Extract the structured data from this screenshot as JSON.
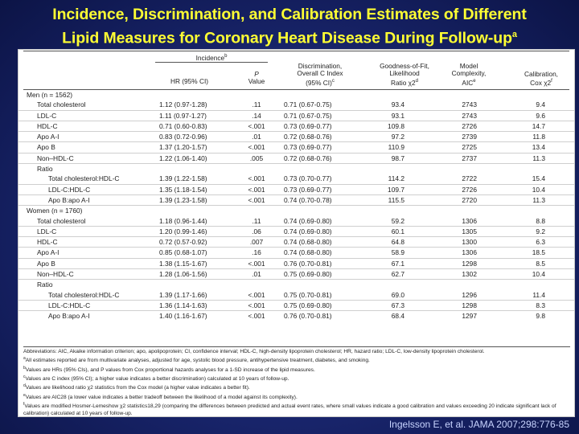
{
  "title": {
    "line1": "Incidence, Discrimination, and Calibration Estimates of Different",
    "line2": "Lipid Measures for Coronary Heart Disease During Follow-up",
    "line2_sup": "a"
  },
  "table": {
    "header": {
      "group_incidence": "Incidence",
      "group_incidence_sup": "b",
      "hr_label": "HR (95% CI)",
      "p_line1": "P",
      "p_line2": "Value",
      "disc_line1": "Discrimination,",
      "disc_line2": "Overall C Index",
      "disc_line3": "(95% CI)",
      "disc_sup": "c",
      "gof_line1": "Goodness-of-Fit,",
      "gof_line2": "Likelihood",
      "gof_line3": "Ratio χ2",
      "gof_sup": "d",
      "mc_line1": "Model",
      "mc_line2": "Complexity,",
      "mc_line3": "AIC",
      "mc_sup": "e",
      "cal_line1": "Calibration,",
      "cal_line2": "Cox χ2",
      "cal_sup": "f"
    },
    "rows": [
      {
        "label": "Men (n = 1562)",
        "level": 0,
        "hr": "",
        "p": "",
        "c": "",
        "lr": "",
        "aic": "",
        "cal": "",
        "rule": false
      },
      {
        "label": "Total cholesterol",
        "level": 1,
        "hr": "1.12 (0.97-1.28)",
        "p": ".11",
        "c": "0.71 (0.67-0.75)",
        "lr": "93.4",
        "aic": "2743",
        "cal": "9.4",
        "rule": true
      },
      {
        "label": "LDL-C",
        "level": 1,
        "hr": "1.11 (0.97-1.27)",
        "p": ".14",
        "c": "0.71 (0.67-0.75)",
        "lr": "93.1",
        "aic": "2743",
        "cal": "9.6",
        "rule": true
      },
      {
        "label": "HDL-C",
        "level": 1,
        "hr": "0.71 (0.60-0.83)",
        "p": "<.001",
        "c": "0.73 (0.69-0.77)",
        "lr": "109.8",
        "aic": "2726",
        "cal": "14.7",
        "rule": true
      },
      {
        "label": "Apo A-I",
        "level": 1,
        "hr": "0.83 (0.72-0.96)",
        "p": ".01",
        "c": "0.72 (0.68-0.76)",
        "lr": "97.2",
        "aic": "2739",
        "cal": "11.8",
        "rule": true
      },
      {
        "label": "Apo B",
        "level": 1,
        "hr": "1.37 (1.20-1.57)",
        "p": "<.001",
        "c": "0.73 (0.69-0.77)",
        "lr": "110.9",
        "aic": "2725",
        "cal": "13.4",
        "rule": true
      },
      {
        "label": "Non–HDL-C",
        "level": 1,
        "hr": "1.22 (1.06-1.40)",
        "p": ".005",
        "c": "0.72 (0.68-0.76)",
        "lr": "98.7",
        "aic": "2737",
        "cal": "11.3",
        "rule": true
      },
      {
        "label": "Ratio",
        "level": 1,
        "hr": "",
        "p": "",
        "c": "",
        "lr": "",
        "aic": "",
        "cal": "",
        "rule": false
      },
      {
        "label": "Total cholesterol:HDL-C",
        "level": 2,
        "hr": "1.39 (1.22-1.58)",
        "p": "<.001",
        "c": "0.73 (0.70-0.77)",
        "lr": "114.2",
        "aic": "2722",
        "cal": "15.4",
        "rule": true
      },
      {
        "label": "LDL-C:HDL-C",
        "level": 2,
        "hr": "1.35 (1.18-1.54)",
        "p": "<.001",
        "c": "0.73 (0.69-0.77)",
        "lr": "109.7",
        "aic": "2726",
        "cal": "10.4",
        "rule": true
      },
      {
        "label": "Apo B:apo A-I",
        "level": 2,
        "hr": "1.39 (1.23-1.58)",
        "p": "<.001",
        "c": "0.74 (0.70-0.78)",
        "lr": "115.5",
        "aic": "2720",
        "cal": "11.3",
        "rule": true
      },
      {
        "label": "Women (n = 1760)",
        "level": 0,
        "hr": "",
        "p": "",
        "c": "",
        "lr": "",
        "aic": "",
        "cal": "",
        "rule": false
      },
      {
        "label": "Total cholesterol",
        "level": 1,
        "hr": "1.18 (0.96-1.44)",
        "p": ".11",
        "c": "0.74 (0.69-0.80)",
        "lr": "59.2",
        "aic": "1306",
        "cal": "8.8",
        "rule": true
      },
      {
        "label": "LDL-C",
        "level": 1,
        "hr": "1.20 (0.99-1.46)",
        "p": ".06",
        "c": "0.74 (0.69-0.80)",
        "lr": "60.1",
        "aic": "1305",
        "cal": "9.2",
        "rule": true
      },
      {
        "label": "HDL-C",
        "level": 1,
        "hr": "0.72 (0.57-0.92)",
        "p": ".007",
        "c": "0.74 (0.68-0.80)",
        "lr": "64.8",
        "aic": "1300",
        "cal": "6.3",
        "rule": true
      },
      {
        "label": "Apo A-I",
        "level": 1,
        "hr": "0.85 (0.68-1.07)",
        "p": ".16",
        "c": "0.74 (0.68-0.80)",
        "lr": "58.9",
        "aic": "1306",
        "cal": "18.5",
        "rule": true
      },
      {
        "label": "Apo B",
        "level": 1,
        "hr": "1.38 (1.15-1.67)",
        "p": "<.001",
        "c": "0.76 (0.70-0.81)",
        "lr": "67.1",
        "aic": "1298",
        "cal": "8.5",
        "rule": true
      },
      {
        "label": "Non–HDL-C",
        "level": 1,
        "hr": "1.28 (1.06-1.56)",
        "p": ".01",
        "c": "0.75 (0.69-0.80)",
        "lr": "62.7",
        "aic": "1302",
        "cal": "10.4",
        "rule": true
      },
      {
        "label": "Ratio",
        "level": 1,
        "hr": "",
        "p": "",
        "c": "",
        "lr": "",
        "aic": "",
        "cal": "",
        "rule": false
      },
      {
        "label": "Total cholesterol:HDL-C",
        "level": 2,
        "hr": "1.39 (1.17-1.66)",
        "p": "<.001",
        "c": "0.75 (0.70-0.81)",
        "lr": "69.0",
        "aic": "1296",
        "cal": "11.4",
        "rule": true
      },
      {
        "label": "LDL-C:HDL-C",
        "level": 2,
        "hr": "1.36 (1.14-1.63)",
        "p": "<.001",
        "c": "0.75 (0.69-0.80)",
        "lr": "67.3",
        "aic": "1298",
        "cal": "8.3",
        "rule": true
      },
      {
        "label": "Apo B:apo A-I",
        "level": 2,
        "hr": "1.40 (1.16-1.67)",
        "p": "<.001",
        "c": "0.76 (0.70-0.81)",
        "lr": "68.4",
        "aic": "1297",
        "cal": "9.8",
        "rule": false
      }
    ]
  },
  "footnotes": {
    "abbreviations": "Abbreviations: AIC, Akaike information criterion; apo, apolipoprotein; CI, confidence interval; HDL-C, high-density lipoprotein cholesterol; HR, hazard ratio; LDL-C, low-density lipoprotein cholesterol.",
    "notes": [
      {
        "mark": "a",
        "text": "All estimates reported are from multivariate analyses, adjusted for age, systolic blood pressure, antihypertensive treatment, diabetes, and smoking."
      },
      {
        "mark": "b",
        "text": "Values are HRs (95% CIs), and P values from Cox proportional hazards analyses for a 1-SD increase of the lipid measures."
      },
      {
        "mark": "c",
        "text": "Values are C index (95% CI); a higher value indicates a better discrimination) calculated at 10 years of follow-up."
      },
      {
        "mark": "d",
        "text": "Values are likelihood ratio χ2 statistics from the Cox model (a higher value indicates a better fit)."
      },
      {
        "mark": "e",
        "text": "Values are AIC28 (a lower value indicates a better tradeoff between the likelihood of a model against its complexity)."
      },
      {
        "mark": "f",
        "text": "Values are modified Hosmer-Lemeshow χ2 statistics18,29 (comparing the differences between predicted and actual event rates, where small values indicate a good calibration and values exceeding 20 indicate significant lack of calibration) calculated at 10 years of follow-up."
      }
    ]
  },
  "citation": "Ingelsson E, et al. JAMA 2007;298:776-85"
}
